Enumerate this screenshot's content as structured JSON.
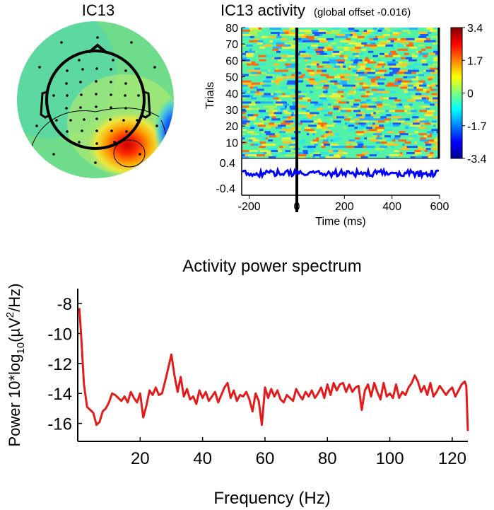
{
  "colors": {
    "erp_trace": "#0000ff",
    "spectrum_line": "#e31b1b",
    "axis": "#000000",
    "colormap": "jet"
  },
  "topo": {
    "title": "IC13"
  },
  "erpimage": {
    "title": "IC13 activity",
    "subtitle": "(global offset -0.016)",
    "ylabel": "Trials",
    "xlabel": "Time (ms)",
    "trial_ticks": [
      "80",
      "70",
      "60",
      "50",
      "40",
      "30",
      "20",
      "10"
    ],
    "erp_ticks": [
      "0.4",
      "-0.4"
    ],
    "time_ticks": [
      "-200",
      "0",
      "200",
      "400",
      "600"
    ],
    "colorbar_ticks": [
      "3.4",
      "1.7",
      "0",
      "-1.7",
      "-3.4"
    ]
  },
  "chart_data": {
    "type": "line",
    "title": "Activity power spectrum",
    "xlabel": "Frequency (Hz)",
    "ylabel_prefix": "Power 10*log",
    "ylabel_sub": "10",
    "ylabel_mid": "(µV",
    "ylabel_sup": "2",
    "ylabel_suffix": "/Hz)",
    "xlim": [
      0,
      125
    ],
    "ylim": [
      -17.2,
      -7
    ],
    "xticks": [
      20,
      40,
      60,
      80,
      100,
      120
    ],
    "yticks": [
      -8,
      -10,
      -12,
      -14,
      -16
    ],
    "grid": false,
    "series": [
      {
        "x": [
          0.5,
          1,
          2,
          3,
          4,
          5,
          6,
          7,
          8,
          9,
          10,
          11,
          12,
          13,
          14,
          15,
          16,
          17,
          18,
          19,
          20,
          21,
          22,
          23,
          24,
          25,
          26,
          27,
          28,
          29,
          30,
          31,
          32,
          33,
          34,
          35,
          36,
          37,
          38,
          39,
          40,
          41,
          42,
          43,
          44,
          45,
          46,
          47,
          48,
          49,
          50,
          51,
          52,
          53,
          54,
          55,
          56,
          57,
          58,
          59,
          60,
          61,
          62,
          63,
          64,
          65,
          66,
          67,
          68,
          69,
          70,
          71,
          72,
          73,
          74,
          75,
          76,
          77,
          78,
          79,
          80,
          81,
          82,
          83,
          84,
          85,
          86,
          87,
          88,
          89,
          90,
          91,
          92,
          93,
          94,
          95,
          96,
          97,
          98,
          99,
          100,
          101,
          102,
          103,
          104,
          105,
          106,
          107,
          108,
          109,
          110,
          111,
          112,
          113,
          114,
          115,
          116,
          117,
          118,
          119,
          120,
          121,
          122,
          123,
          124,
          124.5,
          125
        ],
        "y": [
          -8.3,
          -9.8,
          -13.4,
          -14.9,
          -15.1,
          -15.3,
          -16.1,
          -15.9,
          -15.2,
          -15.0,
          -14.6,
          -14.0,
          -14.1,
          -14.3,
          -14.5,
          -14.2,
          -14.6,
          -13.9,
          -14.3,
          -14.6,
          -14.0,
          -15.6,
          -14.8,
          -13.8,
          -14.1,
          -13.6,
          -14.1,
          -14.0,
          -13.2,
          -12.3,
          -11.4,
          -12.8,
          -13.9,
          -12.9,
          -14.2,
          -13.7,
          -14.4,
          -14.2,
          -14.7,
          -13.8,
          -14.3,
          -13.9,
          -14.5,
          -14.2,
          -13.9,
          -14.6,
          -14.1,
          -13.6,
          -13.3,
          -14.3,
          -13.8,
          -14.5,
          -14.1,
          -14.2,
          -13.9,
          -14.4,
          -15.2,
          -14.0,
          -14.5,
          -16.1,
          -13.6,
          -14.3,
          -13.7,
          -14.2,
          -13.8,
          -14.4,
          -14.6,
          -14.1,
          -14.3,
          -14.5,
          -13.7,
          -14.1,
          -14.4,
          -13.9,
          -14.2,
          -13.8,
          -14.3,
          -14.0,
          -13.6,
          -14.3,
          -13.4,
          -14.1,
          -13.3,
          -13.8,
          -13.4,
          -13.3,
          -13.9,
          -13.4,
          -13.9,
          -13.6,
          -13.5,
          -15.1,
          -13.8,
          -13.4,
          -14.2,
          -13.3,
          -13.9,
          -14.4,
          -13.3,
          -14.2,
          -14.0,
          -14.3,
          -13.4,
          -14.3,
          -13.9,
          -14.1,
          -13.6,
          -13.3,
          -12.8,
          -13.2,
          -13.9,
          -13.5,
          -14.1,
          -13.3,
          -14.2,
          -13.9,
          -13.5,
          -13.8,
          -14.1,
          -13.8,
          -13.6,
          -14.2,
          -13.8,
          -13.4,
          -13.2,
          -13.5,
          -16.5
        ]
      }
    ]
  }
}
